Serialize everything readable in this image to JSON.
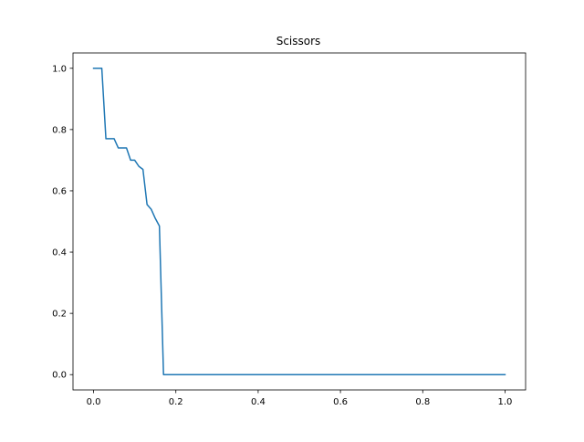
{
  "chart_data": {
    "type": "line",
    "title": "Scissors",
    "xlabel": "",
    "ylabel": "",
    "xlim": [
      -0.05,
      1.05
    ],
    "ylim": [
      -0.05,
      1.05
    ],
    "grid": false,
    "x_ticks": [
      0.0,
      0.2,
      0.4,
      0.6,
      0.8,
      1.0
    ],
    "x_tick_labels": [
      "0.0",
      "0.2",
      "0.4",
      "0.6",
      "0.8",
      "1.0"
    ],
    "y_ticks": [
      0.0,
      0.2,
      0.4,
      0.6,
      0.8,
      1.0
    ],
    "y_tick_labels": [
      "0.0",
      "0.2",
      "0.4",
      "0.6",
      "0.8",
      "1.0"
    ],
    "series": [
      {
        "color": "#1f77b4",
        "x": [
          0.0,
          0.01,
          0.02,
          0.03,
          0.04,
          0.05,
          0.06,
          0.07,
          0.08,
          0.09,
          0.1,
          0.11,
          0.12,
          0.13,
          0.14,
          0.15,
          0.16,
          0.17,
          0.18,
          0.3,
          0.5,
          0.7,
          0.9,
          1.0
        ],
        "y": [
          1.0,
          1.0,
          1.0,
          0.77,
          0.77,
          0.77,
          0.74,
          0.74,
          0.74,
          0.7,
          0.7,
          0.68,
          0.67,
          0.555,
          0.54,
          0.51,
          0.485,
          0.0,
          0.0,
          0.0,
          0.0,
          0.0,
          0.0,
          0.0
        ]
      }
    ]
  }
}
